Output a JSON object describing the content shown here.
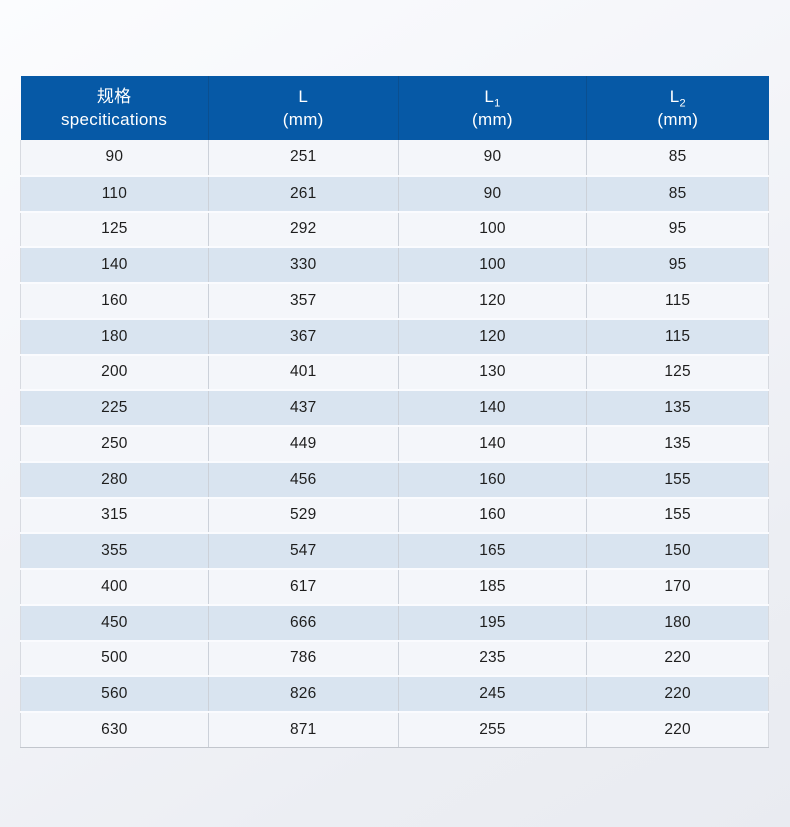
{
  "table": {
    "columns": [
      {
        "title_cn": "规格",
        "title_en": "specitications"
      },
      {
        "symbol": "L",
        "sub": "",
        "unit": "(mm)"
      },
      {
        "symbol": "L",
        "sub": "1",
        "unit": "(mm)"
      },
      {
        "symbol": "L",
        "sub": "2",
        "unit": "(mm)"
      }
    ],
    "rows": [
      [
        "90",
        "251",
        "90",
        "85"
      ],
      [
        "110",
        "261",
        "90",
        "85"
      ],
      [
        "125",
        "292",
        "100",
        "95"
      ],
      [
        "140",
        "330",
        "100",
        "95"
      ],
      [
        "160",
        "357",
        "120",
        "115"
      ],
      [
        "180",
        "367",
        "120",
        "115"
      ],
      [
        "200",
        "401",
        "130",
        "125"
      ],
      [
        "225",
        "437",
        "140",
        "135"
      ],
      [
        "250",
        "449",
        "140",
        "135"
      ],
      [
        "280",
        "456",
        "160",
        "155"
      ],
      [
        "315",
        "529",
        "160",
        "155"
      ],
      [
        "355",
        "547",
        "165",
        "150"
      ],
      [
        "400",
        "617",
        "185",
        "170"
      ],
      [
        "450",
        "666",
        "195",
        "180"
      ],
      [
        "500",
        "786",
        "235",
        "220"
      ],
      [
        "560",
        "826",
        "245",
        "220"
      ],
      [
        "630",
        "871",
        "255",
        "220"
      ]
    ],
    "colors": {
      "header_background": "#0659a6",
      "header_text": "#ffffff",
      "row_light": "#f4f6fa",
      "row_blue": "#d9e4f0",
      "cell_text": "#1e1e1e"
    }
  }
}
